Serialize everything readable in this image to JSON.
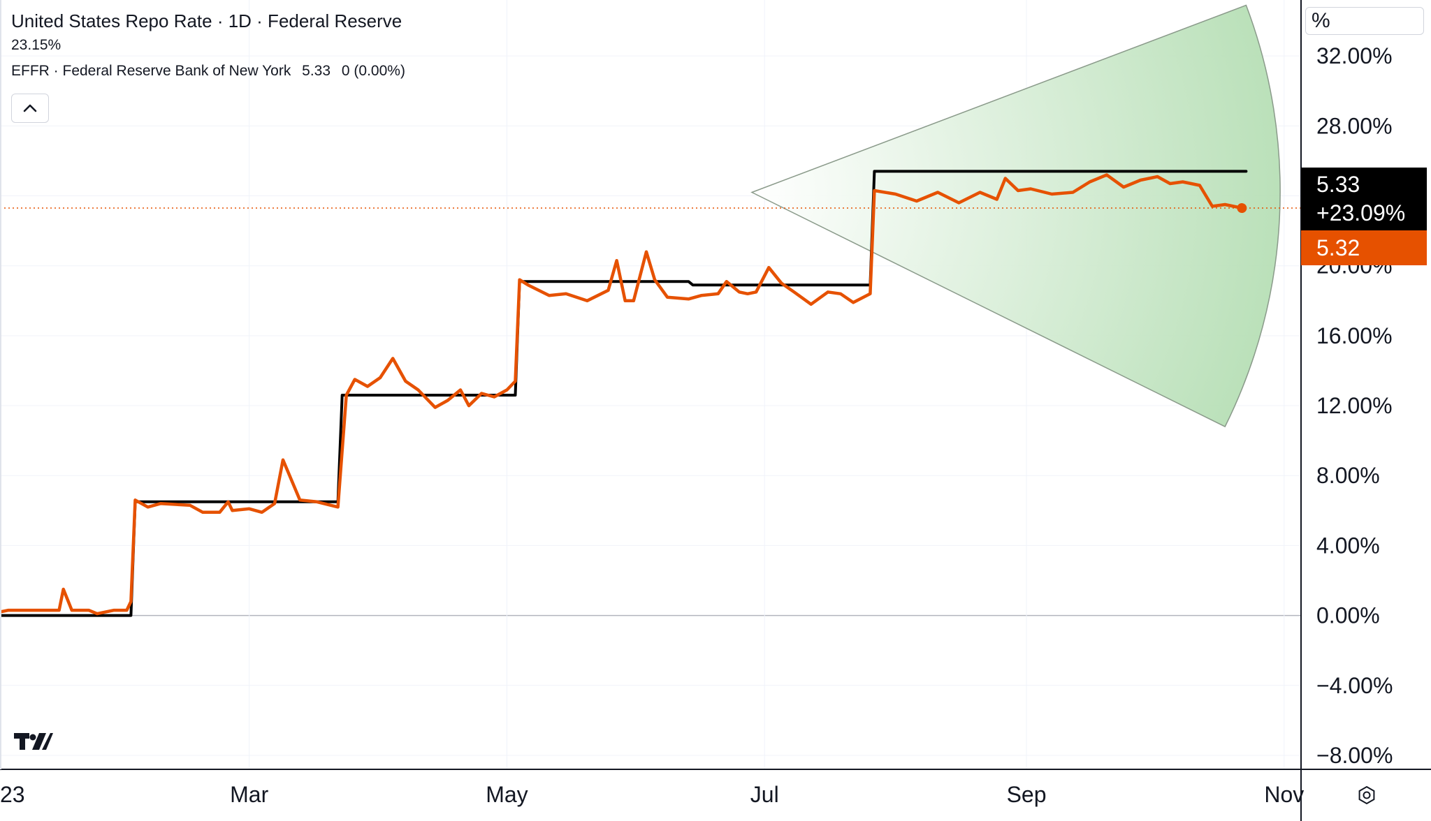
{
  "legend": {
    "title": "United States Repo Rate · 1D · Federal Reserve",
    "change_percent": "23.15%",
    "effr_label": "EFFR · Federal Reserve Bank of New York",
    "effr_value": "5.33",
    "effr_change": "0 (0.00%)"
  },
  "price_scale": {
    "unit": "%",
    "badge_value": "5.33",
    "badge_change": "+23.09%",
    "badge_last": "5.32"
  },
  "colors": {
    "repo_line": "#e65100",
    "effr_line": "#000000",
    "forecast_fill": "#b7dfb6",
    "grid": "#f0f3fa"
  },
  "icons": {
    "collapse": "chevron-up-icon",
    "logo": "tradingview-logo-icon",
    "settings": "gear-icon"
  },
  "chart_data": {
    "type": "line",
    "x_ticks": [
      "23",
      "Mar",
      "May",
      "Jul",
      "Sep",
      "Nov"
    ],
    "y_ticks": [
      "32.00%",
      "28.00%",
      "24.00%",
      "20.00%",
      "16.00%",
      "12.00%",
      "8.00%",
      "4.00%",
      "0.00%",
      "−4.00%",
      "−8.00%"
    ],
    "ylim": [
      -8.8,
      35.2
    ],
    "xlim": [
      "2023-01-01",
      "2023-11-05"
    ],
    "series": [
      {
        "name": "EFFR",
        "color": "#000000",
        "x": [
          "2023-01-01",
          "2023-02-01",
          "2023-02-02",
          "2023-02-24",
          "2023-03-22",
          "2023-03-23",
          "2023-05-03",
          "2023-05-04",
          "2023-06-13",
          "2023-06-14",
          "2023-07-26",
          "2023-07-27",
          "2023-10-23"
        ],
        "y": [
          0.0,
          0.0,
          6.5,
          6.5,
          6.5,
          12.6,
          12.6,
          19.1,
          19.1,
          18.9,
          18.9,
          25.4,
          25.4
        ]
      },
      {
        "name": "United States Repo Rate",
        "color": "#e65100",
        "x": [
          "2023-01-01",
          "2023-01-03",
          "2023-01-15",
          "2023-01-16",
          "2023-01-18",
          "2023-01-22",
          "2023-01-24",
          "2023-01-28",
          "2023-01-31",
          "2023-02-01",
          "2023-02-02",
          "2023-02-05",
          "2023-02-08",
          "2023-02-15",
          "2023-02-18",
          "2023-02-22",
          "2023-02-24",
          "2023-02-25",
          "2023-03-01",
          "2023-03-04",
          "2023-03-07",
          "2023-03-09",
          "2023-03-13",
          "2023-03-17",
          "2023-03-22",
          "2023-03-24",
          "2023-03-26",
          "2023-03-29",
          "2023-04-01",
          "2023-04-04",
          "2023-04-07",
          "2023-04-10",
          "2023-04-14",
          "2023-04-17",
          "2023-04-20",
          "2023-04-22",
          "2023-04-25",
          "2023-04-28",
          "2023-05-01",
          "2023-05-03",
          "2023-05-04",
          "2023-05-06",
          "2023-05-11",
          "2023-05-15",
          "2023-05-20",
          "2023-05-25",
          "2023-05-27",
          "2023-05-29",
          "2023-05-31",
          "2023-06-03",
          "2023-06-05",
          "2023-06-08",
          "2023-06-13",
          "2023-06-16",
          "2023-06-20",
          "2023-06-22",
          "2023-06-25",
          "2023-06-27",
          "2023-06-29",
          "2023-07-02",
          "2023-07-05",
          "2023-07-08",
          "2023-07-12",
          "2023-07-16",
          "2023-07-19",
          "2023-07-22",
          "2023-07-26",
          "2023-07-27",
          "2023-08-01",
          "2023-08-06",
          "2023-08-11",
          "2023-08-16",
          "2023-08-21",
          "2023-08-25",
          "2023-08-27",
          "2023-08-30",
          "2023-09-02",
          "2023-09-07",
          "2023-09-12",
          "2023-09-16",
          "2023-09-20",
          "2023-09-24",
          "2023-09-28",
          "2023-10-02",
          "2023-10-05",
          "2023-10-08",
          "2023-10-12",
          "2023-10-15",
          "2023-10-18",
          "2023-10-22"
        ],
        "y": [
          0.2,
          0.3,
          0.3,
          1.5,
          0.3,
          0.3,
          0.1,
          0.3,
          0.3,
          0.8,
          6.6,
          6.2,
          6.4,
          6.3,
          5.9,
          5.9,
          6.5,
          6.0,
          6.1,
          5.9,
          6.4,
          8.9,
          6.6,
          6.5,
          6.2,
          12.6,
          13.5,
          13.1,
          13.6,
          14.7,
          13.4,
          12.9,
          11.9,
          12.3,
          12.9,
          12.0,
          12.7,
          12.5,
          12.9,
          13.4,
          19.2,
          18.9,
          18.3,
          18.4,
          18.0,
          18.6,
          20.3,
          18.0,
          18.0,
          20.8,
          19.2,
          18.2,
          18.1,
          18.3,
          18.4,
          19.1,
          18.5,
          18.4,
          18.5,
          19.9,
          19.0,
          18.5,
          17.8,
          18.5,
          18.4,
          17.9,
          18.4,
          24.3,
          24.1,
          23.7,
          24.2,
          23.6,
          24.2,
          23.8,
          25.0,
          24.3,
          24.4,
          24.1,
          24.2,
          24.8,
          25.2,
          24.5,
          24.9,
          25.1,
          24.7,
          24.8,
          24.6,
          23.4,
          23.5,
          23.3
        ]
      }
    ],
    "last_value": 5.32,
    "annotation": {
      "type": "forecast-cone",
      "color": "#b7dfb6",
      "apex": {
        "x": "2023-06-28",
        "y": 24.2
      },
      "upper": {
        "x": "2023-10-23",
        "y": 34.9
      },
      "lower": {
        "x": "2023-10-18",
        "y": 10.8
      }
    },
    "grid": true,
    "legend_position": "top-left"
  }
}
